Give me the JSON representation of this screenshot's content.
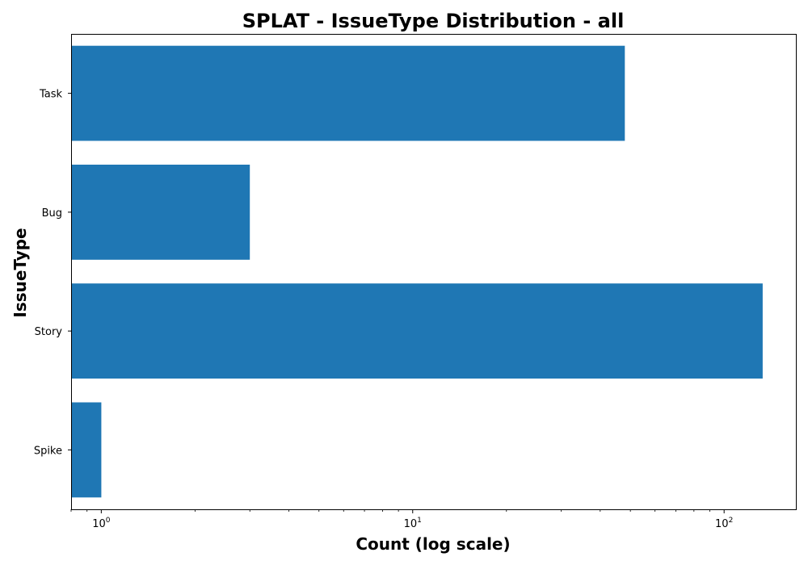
{
  "chart_data": {
    "type": "bar",
    "orientation": "horizontal",
    "title": "SPLAT - IssueType Distribution - all",
    "xlabel": "Count (log scale)",
    "ylabel": "IssueType",
    "x_scale": "log",
    "xlim": [
      0.8,
      170
    ],
    "categories": [
      "Task",
      "Bug",
      "Story",
      "Spike"
    ],
    "values": [
      48,
      3,
      133,
      1
    ],
    "x_ticks": [
      {
        "value": 1,
        "base": "10",
        "exp": "0"
      },
      {
        "value": 10,
        "base": "10",
        "exp": "1"
      },
      {
        "value": 100,
        "base": "10",
        "exp": "2"
      }
    ],
    "bar_color": "#1f77b4",
    "grid": false,
    "legend": "none"
  }
}
